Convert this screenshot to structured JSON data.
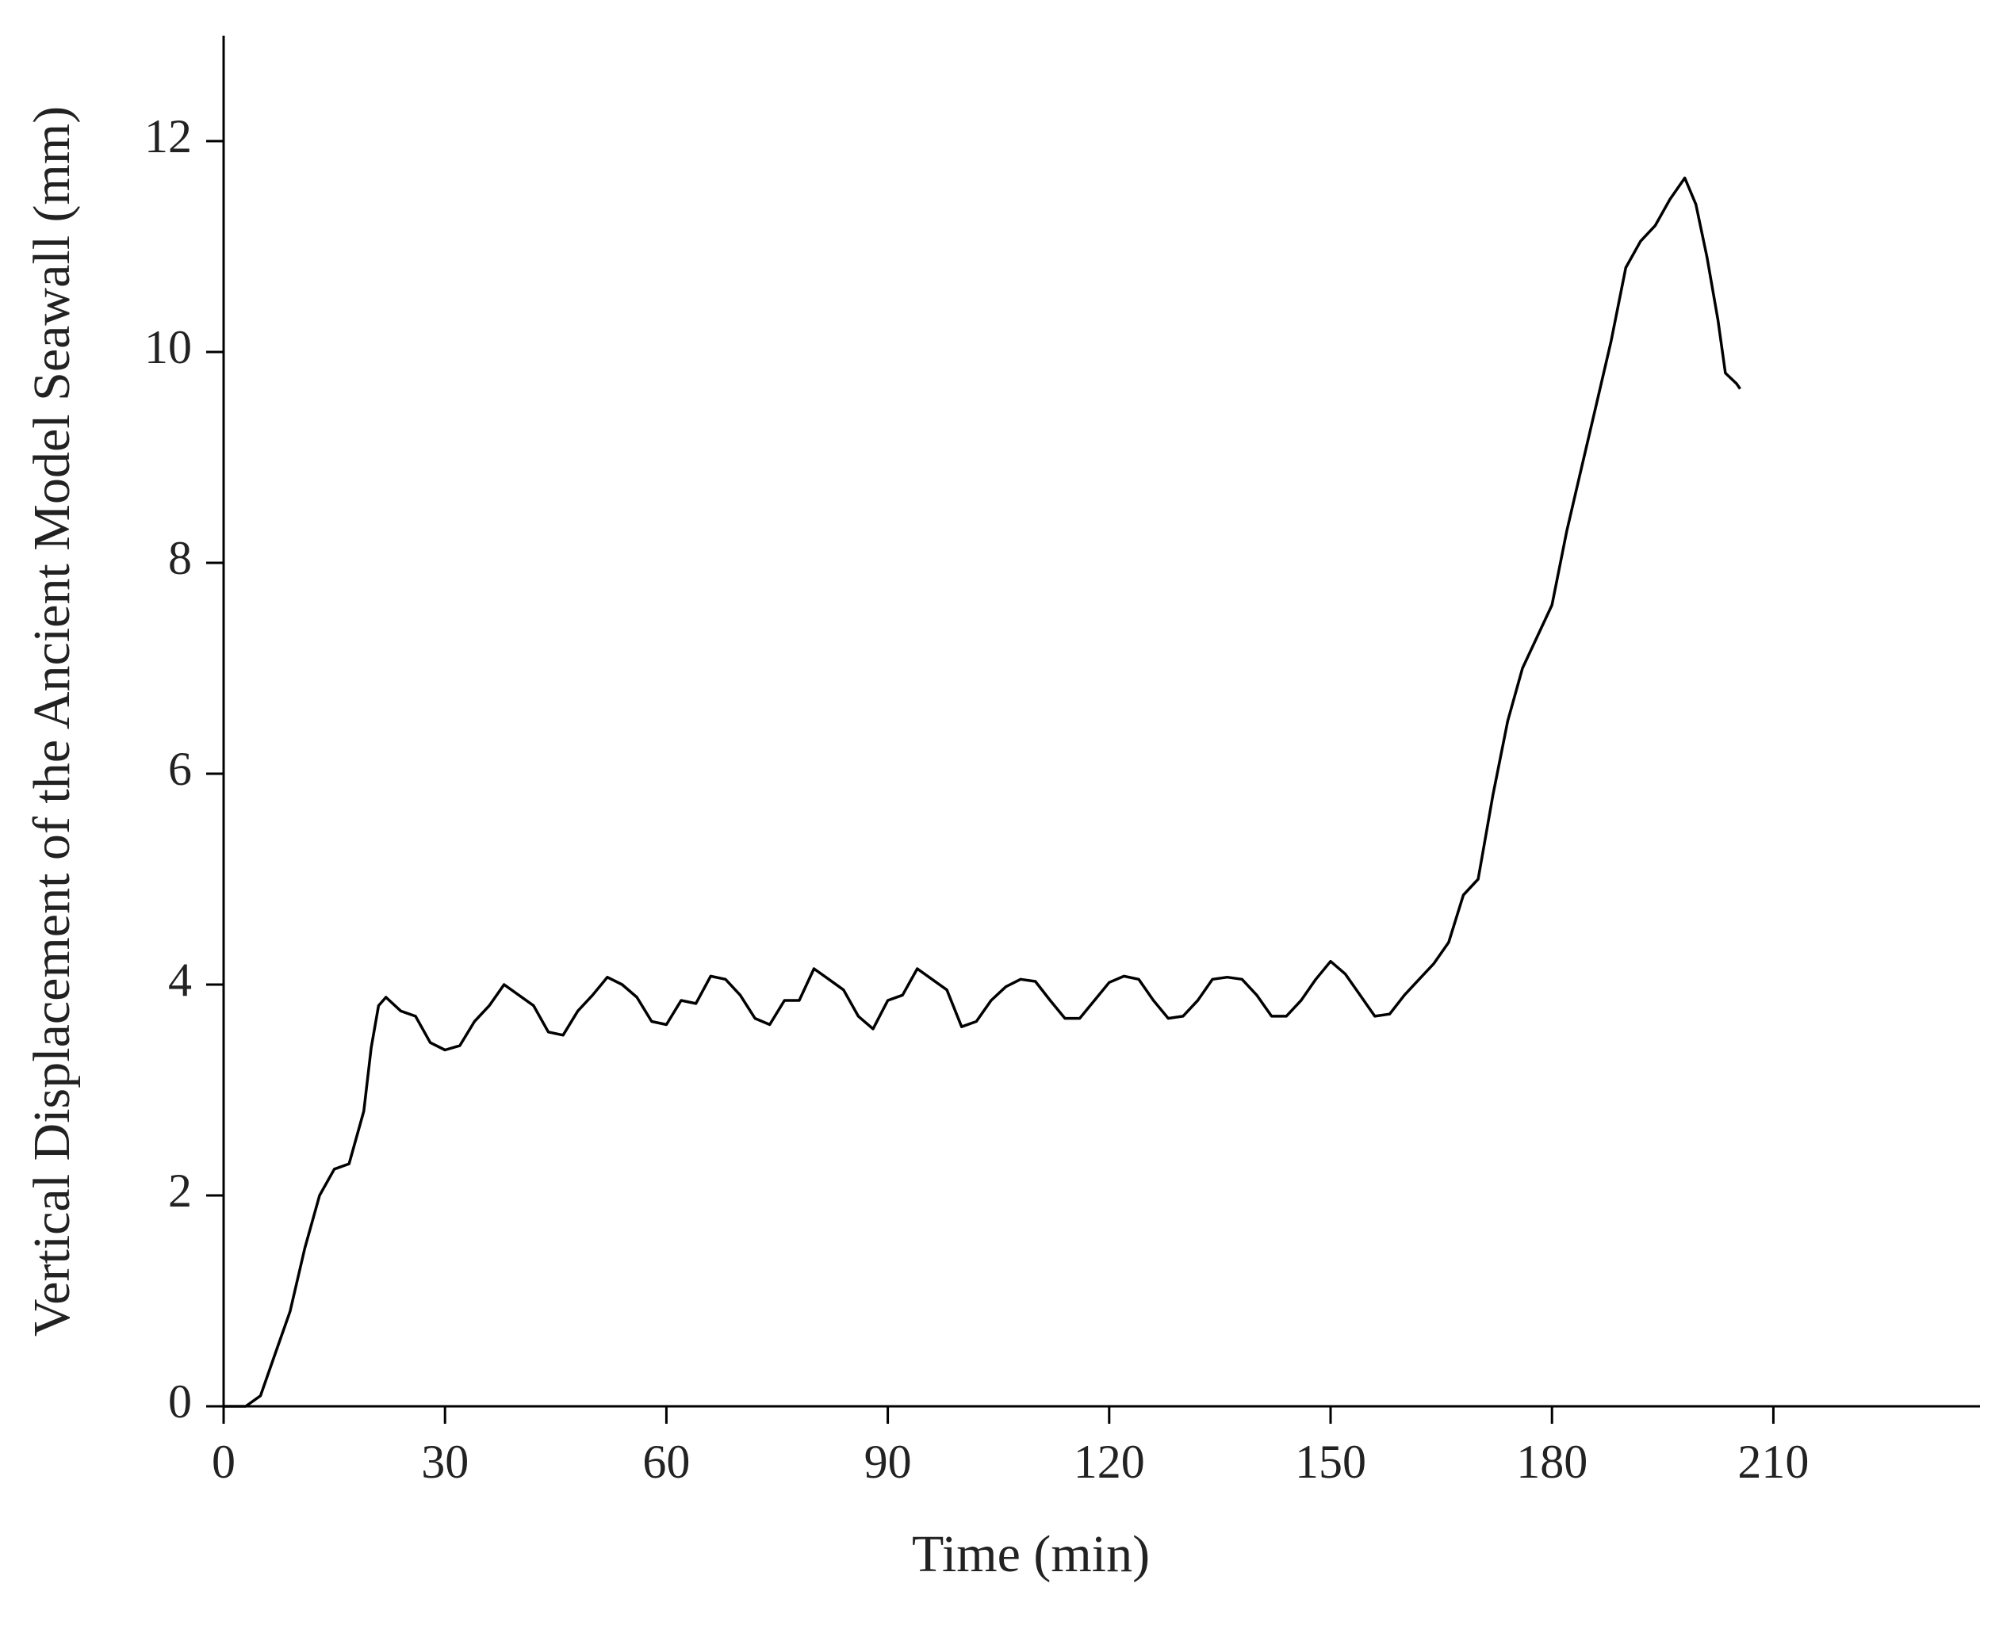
{
  "chart_data": {
    "type": "line",
    "x_label": "Time (min)",
    "y_label": "Vertical Displacement of the Ancient Model Seawall (mm)",
    "xlim": [
      0,
      238
    ],
    "ylim": [
      0,
      13
    ],
    "xticks": [
      0,
      30,
      60,
      90,
      120,
      150,
      180,
      210
    ],
    "yticks": [
      0,
      2,
      4,
      6,
      8,
      10,
      12
    ],
    "series": [
      {
        "color": "#000000",
        "x": [
          0,
          3,
          5,
          7,
          9,
          11,
          13,
          15,
          17,
          19,
          20,
          21,
          22,
          24,
          26,
          28,
          30,
          32,
          34,
          36,
          38,
          40,
          42,
          44,
          46,
          48,
          50,
          52,
          54,
          56,
          58,
          60,
          62,
          64,
          66,
          68,
          70,
          72,
          74,
          76,
          78,
          80,
          82,
          84,
          86,
          88,
          90,
          92,
          94,
          96,
          98,
          100,
          102,
          104,
          106,
          108,
          110,
          112,
          114,
          116,
          118,
          120,
          122,
          124,
          126,
          128,
          130,
          132,
          134,
          136,
          138,
          140,
          142,
          144,
          146,
          148,
          150,
          152,
          154,
          156,
          158,
          160,
          162,
          164,
          166,
          168,
          170,
          172,
          174,
          176,
          178,
          180,
          182,
          184,
          186,
          188,
          190,
          192,
          194,
          196,
          198,
          199.5,
          201,
          202.5,
          203.5,
          205,
          205.5
        ],
        "values": [
          0,
          0,
          0.1,
          0.5,
          0.9,
          1.5,
          2.0,
          2.25,
          2.3,
          2.8,
          3.4,
          3.8,
          3.88,
          3.75,
          3.7,
          3.45,
          3.38,
          3.42,
          3.65,
          3.8,
          4.0,
          3.9,
          3.8,
          3.55,
          3.52,
          3.75,
          3.9,
          4.07,
          4.0,
          3.88,
          3.65,
          3.62,
          3.85,
          3.82,
          4.08,
          4.05,
          3.9,
          3.68,
          3.62,
          3.85,
          3.85,
          4.15,
          4.05,
          3.95,
          3.7,
          3.58,
          3.85,
          3.9,
          4.15,
          4.05,
          3.95,
          3.6,
          3.65,
          3.85,
          3.98,
          4.05,
          4.03,
          3.85,
          3.68,
          3.68,
          3.85,
          4.02,
          4.08,
          4.05,
          3.85,
          3.68,
          3.7,
          3.85,
          4.05,
          4.07,
          4.05,
          3.9,
          3.7,
          3.7,
          3.85,
          4.05,
          4.22,
          4.1,
          3.9,
          3.7,
          3.72,
          3.9,
          4.05,
          4.2,
          4.4,
          4.85,
          5.0,
          5.8,
          6.5,
          7.0,
          7.3,
          7.6,
          8.3,
          8.9,
          9.5,
          10.1,
          10.8,
          11.05,
          11.2,
          11.45,
          11.65,
          11.4,
          10.9,
          10.3,
          9.8,
          9.7,
          9.65
        ]
      }
    ]
  }
}
